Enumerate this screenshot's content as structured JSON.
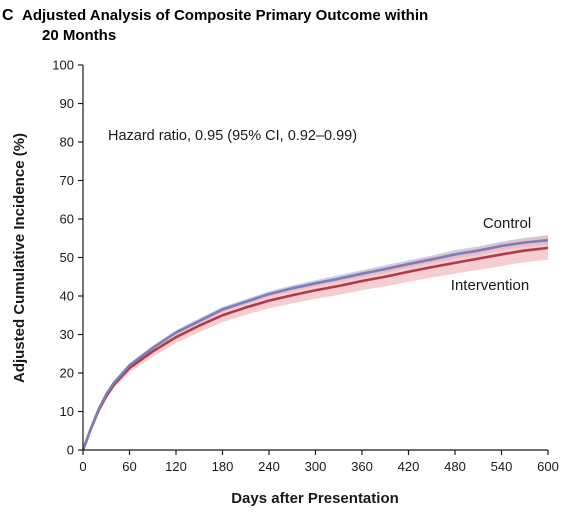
{
  "chart_data": {
    "type": "line",
    "panel_letter": "C",
    "title_lines": [
      "Adjusted Analysis of Composite Primary Outcome within",
      "20 Months"
    ],
    "xlabel": "Days after Presentation",
    "ylabel": "Adjusted Cumulative Incidence (%)",
    "xlim": [
      0,
      600
    ],
    "ylim": [
      0,
      100
    ],
    "xticks": [
      0,
      60,
      120,
      180,
      240,
      300,
      360,
      420,
      480,
      540,
      600
    ],
    "yticks": [
      0,
      10,
      20,
      30,
      40,
      50,
      60,
      70,
      80,
      90,
      100
    ],
    "grid": false,
    "annotation": "Hazard ratio, 0.95 (95% CI, 0.92–0.99)",
    "series": [
      {
        "name": "Control",
        "color": "#7b7fb8",
        "band_color": "#b9bde0",
        "x": [
          0,
          10,
          20,
          30,
          40,
          60,
          90,
          120,
          150,
          180,
          210,
          240,
          270,
          300,
          330,
          360,
          390,
          420,
          450,
          480,
          510,
          540,
          570,
          600
        ],
        "y": [
          0,
          5.5,
          10.5,
          14.5,
          17.5,
          22,
          26.5,
          30.5,
          33.5,
          36.5,
          38.5,
          40.5,
          42,
          43.3,
          44.5,
          45.8,
          47,
          48.3,
          49.5,
          50.8,
          51.8,
          53,
          53.9,
          54.5
        ],
        "lower": [
          0,
          5.3,
          10.2,
          14.1,
          17.1,
          21.5,
          25.9,
          29.9,
          32.8,
          35.8,
          37.8,
          39.8,
          41.2,
          42.5,
          43.6,
          44.9,
          46,
          47.3,
          48.5,
          49.7,
          50.7,
          51.9,
          52.7,
          53.2
        ],
        "upper": [
          0,
          5.7,
          10.8,
          14.9,
          17.9,
          22.5,
          27.1,
          31.1,
          34.2,
          37.2,
          39.2,
          41.2,
          42.8,
          44.1,
          45.4,
          46.7,
          48,
          49.3,
          50.5,
          51.9,
          52.9,
          54.1,
          55.1,
          55.8
        ]
      },
      {
        "name": "Intervention",
        "color": "#b03a48",
        "band_color": "#f2b8bc",
        "x": [
          0,
          10,
          20,
          30,
          40,
          60,
          90,
          120,
          150,
          180,
          210,
          240,
          270,
          300,
          330,
          360,
          390,
          420,
          450,
          480,
          510,
          540,
          570,
          600
        ],
        "y": [
          0,
          5.4,
          10.2,
          14,
          17,
          21.3,
          25.6,
          29.3,
          32.3,
          35,
          37,
          38.8,
          40.2,
          41.5,
          42.6,
          43.9,
          45,
          46.3,
          47.5,
          48.6,
          49.7,
          50.8,
          51.8,
          52.5
        ],
        "lower": [
          0,
          5,
          9.6,
          13.2,
          16.1,
          20.2,
          24.2,
          27.8,
          30.6,
          33.2,
          35.1,
          36.8,
          38.1,
          39.3,
          40.3,
          41.5,
          42.5,
          43.7,
          44.8,
          45.8,
          46.8,
          47.8,
          48.8,
          49.4
        ],
        "upper": [
          0,
          5.8,
          10.8,
          14.8,
          17.9,
          22.4,
          27,
          30.8,
          34,
          36.8,
          38.9,
          40.8,
          42.3,
          43.7,
          44.9,
          46.3,
          47.5,
          48.9,
          50.2,
          51.4,
          52.6,
          53.8,
          54.8,
          55.6
        ]
      }
    ]
  }
}
